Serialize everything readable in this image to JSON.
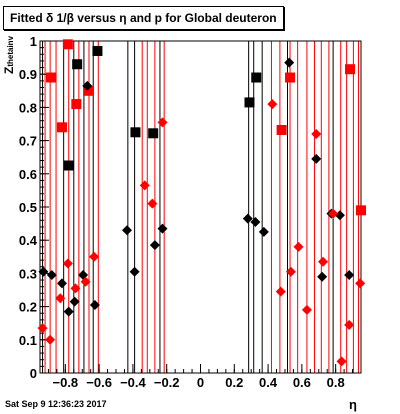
{
  "title": "Fitted δ 1/β versus η and p for Global deuteron",
  "footer_timestamp": "Sat Sep  9 12:36:23 2017",
  "chart_data": {
    "type": "scatter",
    "title": "Fitted δ 1/β versus η and p for Global deuteron",
    "xlabel": "η",
    "ylabel": "Z",
    "ylabel_sub": "thetainv",
    "xlim": [
      -0.95,
      0.95
    ],
    "ylim": [
      0,
      1
    ],
    "x_ticks": [
      -0.8,
      -0.6,
      -0.4,
      -0.2,
      0,
      0.2,
      0.4,
      0.6,
      0.8
    ],
    "x_tick_labels": [
      "−0.8",
      "−0.6",
      "−0.4",
      "−0.2",
      "0",
      "0.2",
      "0.4",
      "0.6",
      "0.8"
    ],
    "y_ticks": [
      0,
      0.1,
      0.2,
      0.3,
      0.4,
      0.5,
      0.6,
      0.7,
      0.8,
      0.9,
      1
    ],
    "y_tick_labels": [
      "0",
      "0.1",
      "0.2",
      "0.3",
      "0.4",
      "0.5",
      "0.6",
      "0.7",
      "0.8",
      "0.9",
      "1"
    ],
    "grid": false,
    "vertical_lines": [
      {
        "x": -0.935,
        "color": "#000000"
      },
      {
        "x": -0.92,
        "color": "#ff0000"
      },
      {
        "x": -0.89,
        "color": "#ff0000"
      },
      {
        "x": -0.855,
        "color": "#ff0000"
      },
      {
        "x": -0.81,
        "color": "#000000"
      },
      {
        "x": -0.78,
        "color": "#ff0000"
      },
      {
        "x": -0.75,
        "color": "#000000"
      },
      {
        "x": -0.72,
        "color": "#ff0000"
      },
      {
        "x": -0.69,
        "color": "#000000"
      },
      {
        "x": -0.66,
        "color": "#ff0000"
      },
      {
        "x": -0.635,
        "color": "#000000"
      },
      {
        "x": -0.605,
        "color": "#ff0000"
      },
      {
        "x": -0.43,
        "color": "#000000"
      },
      {
        "x": -0.39,
        "color": "#000000"
      },
      {
        "x": -0.345,
        "color": "#ff0000"
      },
      {
        "x": -0.315,
        "color": "#ff0000"
      },
      {
        "x": -0.27,
        "color": "#ff0000"
      },
      {
        "x": -0.24,
        "color": "#000000"
      },
      {
        "x": -0.215,
        "color": "#ff0000"
      },
      {
        "x": 0.285,
        "color": "#000000"
      },
      {
        "x": 0.315,
        "color": "#000000"
      },
      {
        "x": 0.365,
        "color": "#000000"
      },
      {
        "x": 0.42,
        "color": "#ff0000"
      },
      {
        "x": 0.47,
        "color": "#ff0000"
      },
      {
        "x": 0.515,
        "color": "#000000"
      },
      {
        "x": 0.53,
        "color": "#ff0000"
      },
      {
        "x": 0.575,
        "color": "#ff0000"
      },
      {
        "x": 0.63,
        "color": "#ff0000"
      },
      {
        "x": 0.675,
        "color": "#ff0000"
      },
      {
        "x": 0.715,
        "color": "#ff0000"
      },
      {
        "x": 0.76,
        "color": "#ff0000"
      },
      {
        "x": 0.785,
        "color": "#000000"
      },
      {
        "x": 0.83,
        "color": "#ff0000"
      },
      {
        "x": 0.865,
        "color": "#ff0000"
      },
      {
        "x": 0.905,
        "color": "#ff0000"
      },
      {
        "x": 0.935,
        "color": "#ff0000"
      }
    ],
    "series": [
      {
        "color": "#000000",
        "marker": "square",
        "points": [
          {
            "x": -0.61,
            "y": 0.97
          },
          {
            "x": -0.73,
            "y": 0.93
          },
          {
            "x": -0.78,
            "y": 0.625
          },
          {
            "x": -0.385,
            "y": 0.725
          },
          {
            "x": -0.28,
            "y": 0.722
          },
          {
            "x": 0.29,
            "y": 0.815
          },
          {
            "x": 0.33,
            "y": 0.89
          }
        ]
      },
      {
        "color": "#ff0000",
        "marker": "square",
        "points": [
          {
            "x": -0.785,
            "y": 0.99
          },
          {
            "x": -0.885,
            "y": 0.89
          },
          {
            "x": -0.82,
            "y": 0.74
          },
          {
            "x": -0.735,
            "y": 0.81
          },
          {
            "x": -0.665,
            "y": 0.85
          },
          {
            "x": 0.48,
            "y": 0.732
          },
          {
            "x": 0.53,
            "y": 0.89
          },
          {
            "x": 0.885,
            "y": 0.915
          },
          {
            "x": 0.95,
            "y": 0.49
          }
        ]
      },
      {
        "color": "#000000",
        "marker": "diamond",
        "points": [
          {
            "x": -0.93,
            "y": 0.305
          },
          {
            "x": -0.88,
            "y": 0.295
          },
          {
            "x": -0.82,
            "y": 0.27
          },
          {
            "x": -0.78,
            "y": 0.185
          },
          {
            "x": -0.745,
            "y": 0.215
          },
          {
            "x": -0.695,
            "y": 0.295
          },
          {
            "x": -0.67,
            "y": 0.865
          },
          {
            "x": -0.625,
            "y": 0.205
          },
          {
            "x": -0.435,
            "y": 0.43
          },
          {
            "x": -0.39,
            "y": 0.305
          },
          {
            "x": -0.27,
            "y": 0.385
          },
          {
            "x": -0.225,
            "y": 0.435
          },
          {
            "x": 0.28,
            "y": 0.465
          },
          {
            "x": 0.325,
            "y": 0.455
          },
          {
            "x": 0.375,
            "y": 0.425
          },
          {
            "x": 0.525,
            "y": 0.935
          },
          {
            "x": 0.685,
            "y": 0.645
          },
          {
            "x": 0.72,
            "y": 0.29
          },
          {
            "x": 0.775,
            "y": 0.48
          },
          {
            "x": 0.825,
            "y": 0.475
          },
          {
            "x": 0.88,
            "y": 0.295
          }
        ]
      },
      {
        "color": "#ff0000",
        "marker": "diamond",
        "points": [
          {
            "x": -0.935,
            "y": 0.135
          },
          {
            "x": -0.89,
            "y": 0.1
          },
          {
            "x": -0.83,
            "y": 0.225
          },
          {
            "x": -0.785,
            "y": 0.33
          },
          {
            "x": -0.74,
            "y": 0.255
          },
          {
            "x": -0.68,
            "y": 0.275
          },
          {
            "x": -0.63,
            "y": 0.35
          },
          {
            "x": -0.33,
            "y": 0.565
          },
          {
            "x": -0.285,
            "y": 0.51
          },
          {
            "x": -0.225,
            "y": 0.755
          },
          {
            "x": 0.425,
            "y": 0.81
          },
          {
            "x": 0.475,
            "y": 0.245
          },
          {
            "x": 0.535,
            "y": 0.305
          },
          {
            "x": 0.58,
            "y": 0.38
          },
          {
            "x": 0.63,
            "y": 0.19
          },
          {
            "x": 0.685,
            "y": 0.72
          },
          {
            "x": 0.725,
            "y": 0.335
          },
          {
            "x": 0.785,
            "y": 0.48
          },
          {
            "x": 0.835,
            "y": 0.035
          },
          {
            "x": 0.88,
            "y": 0.145
          },
          {
            "x": 0.945,
            "y": 0.27
          }
        ]
      }
    ]
  }
}
